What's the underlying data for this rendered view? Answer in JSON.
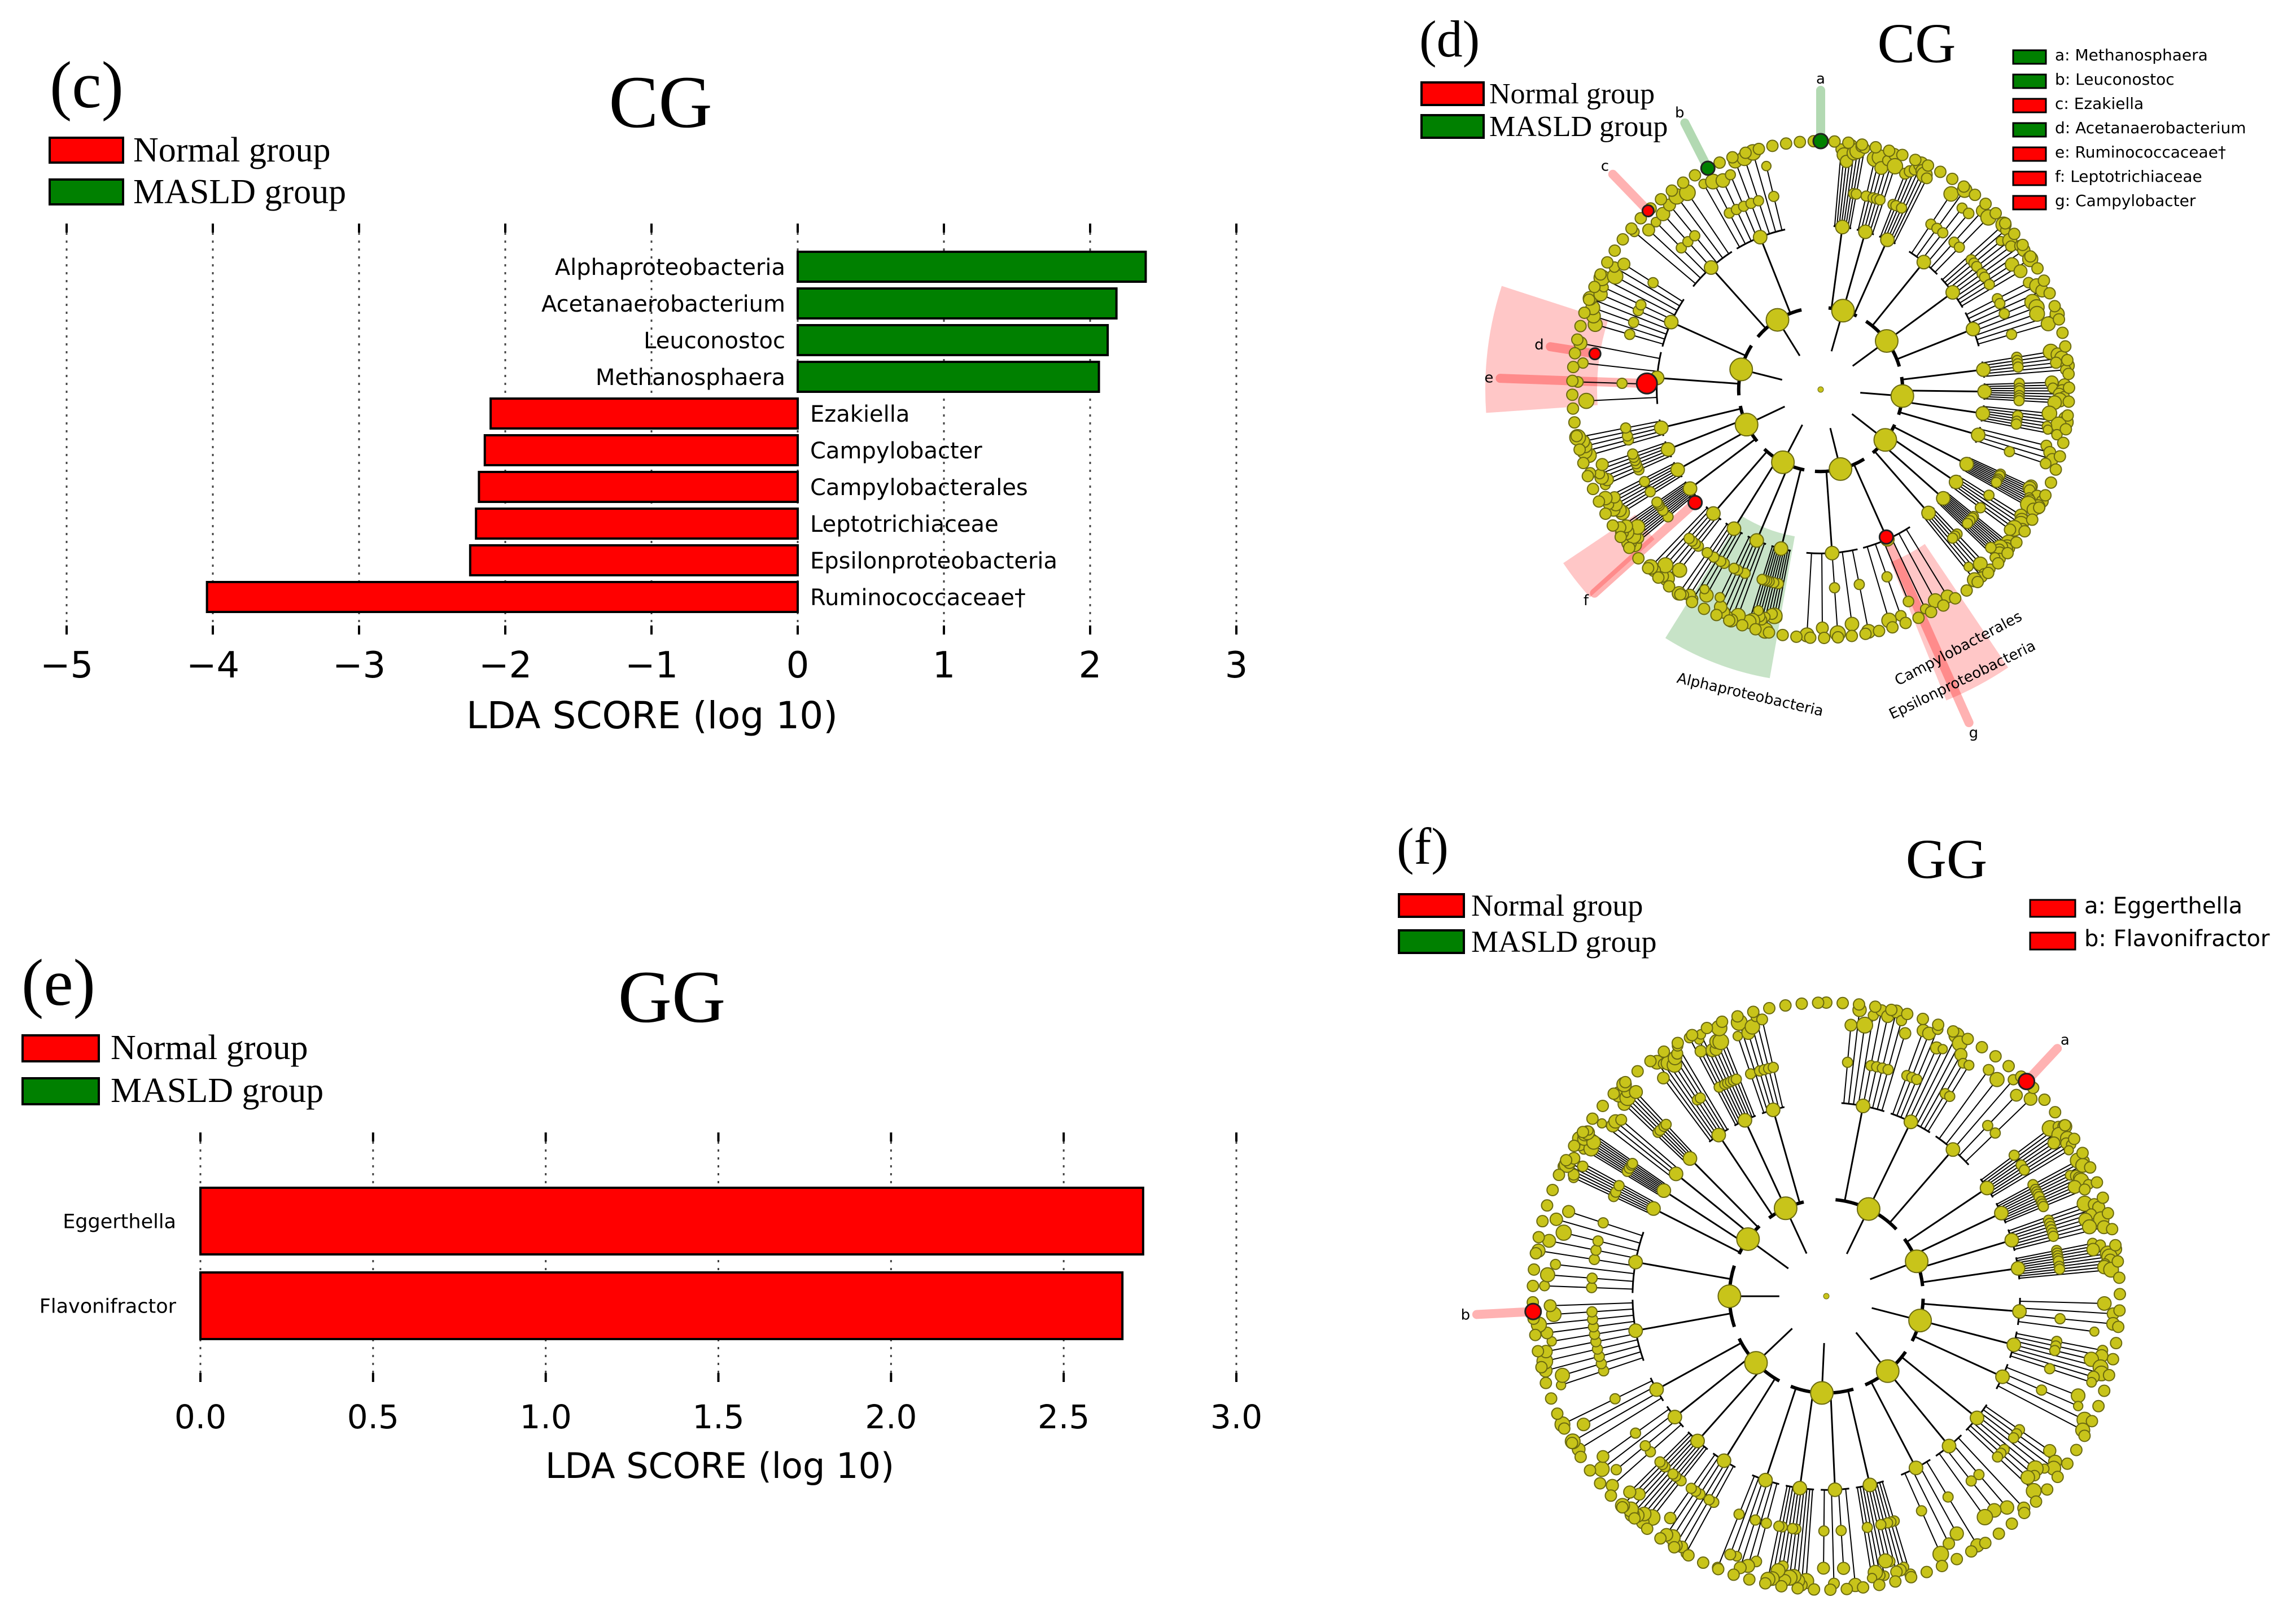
{
  "colors": {
    "normal": "#ff0000",
    "masld": "#008000",
    "node": "#c8c41a",
    "node_stroke": "#6b6a10"
  },
  "legend": {
    "normal": "Normal group",
    "masld": "MASLD group"
  },
  "panel_c": {
    "letter": "(c)",
    "title": "CG",
    "chart_data": {
      "type": "bar",
      "title": "CG",
      "xlabel": "LDA SCORE (log 10)",
      "xlim": [
        -5,
        3
      ],
      "xticks": [
        "−5",
        "−4",
        "−3",
        "−2",
        "−1",
        "0",
        "1",
        "2",
        "3"
      ],
      "tickvals": [
        -5,
        -4,
        -3,
        -2,
        -1,
        0,
        1,
        2,
        3
      ],
      "categories": [
        "Alphaproteobacteria",
        "Acetanaerobacterium",
        "Leuconostoc",
        "Methanosphaera",
        "Ezakiella",
        "Campylobacter",
        "Campylobacterales",
        "Leptotrichiaceae",
        "Epsilonproteobacteria",
        "Ruminococcaceae†"
      ],
      "values": [
        2.38,
        2.18,
        2.12,
        2.06,
        -2.1,
        -2.14,
        -2.18,
        -2.2,
        -2.24,
        -4.04
      ],
      "groups": [
        "MASLD group",
        "MASLD group",
        "MASLD group",
        "MASLD group",
        "Normal group",
        "Normal group",
        "Normal group",
        "Normal group",
        "Normal group",
        "Normal group"
      ]
    }
  },
  "panel_e": {
    "letter": "(e)",
    "title": "GG",
    "chart_data": {
      "type": "bar",
      "title": "GG",
      "xlabel": "LDA SCORE (log 10)",
      "xlim": [
        0,
        3
      ],
      "xticks": [
        "0.0",
        "0.5",
        "1.0",
        "1.5",
        "2.0",
        "2.5",
        "3.0"
      ],
      "tickvals": [
        0,
        0.5,
        1,
        1.5,
        2,
        2.5,
        3
      ],
      "categories": [
        "Eggerthella",
        "Flavonifractor"
      ],
      "values": [
        2.73,
        2.67
      ],
      "groups": [
        "Normal group",
        "Normal group"
      ]
    }
  },
  "panel_d": {
    "letter": "(d)",
    "title": "CG",
    "key": [
      {
        "text": "a: Methanosphaera",
        "group": "MASLD group"
      },
      {
        "text": "b: Leuconostoc",
        "group": "MASLD group"
      },
      {
        "text": "c: Ezakiella",
        "group": "Normal group"
      },
      {
        "text": "d: Acetanaerobacterium",
        "group": "MASLD group"
      },
      {
        "text": "e: Ruminococcaceae†",
        "group": "Normal group"
      },
      {
        "text": "f: Leptotrichiaceae",
        "group": "Normal group"
      },
      {
        "text": "g: Campylobacter",
        "group": "Normal group"
      }
    ],
    "wedge_labels": [
      "Alphaproteobacteria",
      "Campylobacterales",
      "Epsilonproteobacteria"
    ],
    "marker_letters": [
      "a",
      "b",
      "c",
      "d",
      "e",
      "f",
      "g"
    ]
  },
  "panel_f": {
    "letter": "(f)",
    "title": "GG",
    "key": [
      {
        "text": "a: Eggerthella",
        "group": "Normal group"
      },
      {
        "text": "b: Flavonifractor",
        "group": "Normal group"
      }
    ],
    "marker_letters": [
      "a",
      "b"
    ]
  }
}
